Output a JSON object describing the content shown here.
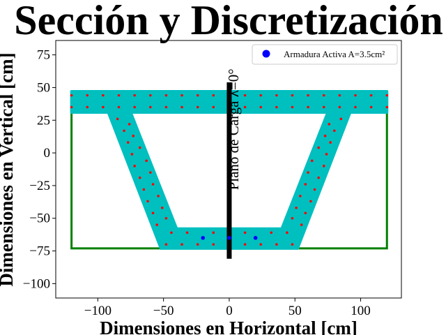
{
  "chart_data": {
    "type": "scatter",
    "title": "Sección y Discretización",
    "xlabel": "Dimensiones en Horizontal [cm]",
    "ylabel": "Dimensiones en Vertical [cm]",
    "xlim": [
      -132,
      131
    ],
    "ylim": [
      -111,
      86
    ],
    "xticks": [
      -100,
      -50,
      0,
      50,
      100
    ],
    "yticks": [
      -100,
      -75,
      -50,
      -25,
      0,
      25,
      50,
      75
    ],
    "xtick_labels": [
      "−100",
      "−50",
      "0",
      "50",
      "100"
    ],
    "ytick_labels": [
      "−100",
      "−75",
      "−50",
      "−25",
      "0",
      "25",
      "50",
      "75"
    ],
    "grid": false,
    "legend": {
      "position": "top-right",
      "entries": [
        "Armadura Activa A=3.5cm²"
      ]
    },
    "colors": {
      "section": "#00bfbf",
      "outline": "#008000",
      "rebar": "#ff0000",
      "prestress": "#0000ff",
      "load_plane": "#000000"
    },
    "annotation": {
      "text": "Plano de Carga λ=0°",
      "x": 7,
      "y": 18,
      "rotation": -90
    },
    "section_outline": [
      [
        -120,
        31
      ],
      [
        -120,
        -73
      ],
      [
        120,
        -73
      ],
      [
        120,
        31
      ]
    ],
    "section_regions": [
      [
        [
          -120,
          47
        ],
        [
          120,
          47
        ],
        [
          120,
          31
        ],
        [
          -120,
          31
        ]
      ],
      [
        [
          -92,
          31
        ],
        [
          -75,
          31
        ],
        [
          -40,
          -58
        ],
        [
          -52,
          -73
        ]
      ],
      [
        [
          75,
          31
        ],
        [
          92,
          31
        ],
        [
          52,
          -73
        ],
        [
          40,
          -58
        ]
      ],
      [
        [
          -52,
          -58
        ],
        [
          52,
          -58
        ],
        [
          52,
          -73
        ],
        [
          -52,
          -73
        ]
      ]
    ],
    "load_plane": {
      "x": 0,
      "y": [
        -81,
        54
      ]
    },
    "series": [
      {
        "name": "Armadura Activa A=3.5cm²",
        "marker": "circle",
        "points": [
          [
            -20,
            -65
          ],
          [
            0,
            -65
          ],
          [
            20,
            -65
          ]
        ]
      },
      {
        "marker": "dot",
        "points": [
          [
            -120,
            44
          ],
          [
            -108,
            44
          ],
          [
            -96,
            44
          ],
          [
            -84,
            44
          ],
          [
            -72,
            44
          ],
          [
            -60,
            44
          ],
          [
            -48,
            44
          ],
          [
            -36,
            44
          ],
          [
            -24,
            44
          ],
          [
            -12,
            44
          ],
          [
            12,
            44
          ],
          [
            24,
            44
          ],
          [
            36,
            44
          ],
          [
            48,
            44
          ],
          [
            60,
            44
          ],
          [
            72,
            44
          ],
          [
            84,
            44
          ],
          [
            96,
            44
          ],
          [
            108,
            44
          ],
          [
            120,
            44
          ],
          [
            -120,
            35
          ],
          [
            -108,
            35
          ],
          [
            -96,
            35
          ],
          [
            -84,
            35
          ],
          [
            -72,
            35
          ],
          [
            -60,
            35
          ],
          [
            -48,
            35
          ],
          [
            -36,
            35
          ],
          [
            -24,
            35
          ],
          [
            -12,
            35
          ],
          [
            12,
            35
          ],
          [
            24,
            35
          ],
          [
            36,
            35
          ],
          [
            48,
            35
          ],
          [
            60,
            35
          ],
          [
            72,
            35
          ],
          [
            84,
            35
          ],
          [
            96,
            35
          ],
          [
            108,
            35
          ],
          [
            120,
            35
          ],
          [
            -85,
            26
          ],
          [
            -80,
            17
          ],
          [
            -77,
            8
          ],
          [
            -74,
            -1
          ],
          [
            -72,
            -10
          ],
          [
            -68,
            -19
          ],
          [
            -65,
            -28
          ],
          [
            -62,
            -37
          ],
          [
            -58,
            -46
          ],
          [
            -55,
            -55
          ],
          [
            -76,
            22
          ],
          [
            -73,
            13
          ],
          [
            -68,
            4
          ],
          [
            -63,
            -6
          ],
          [
            -60,
            -15
          ],
          [
            -58,
            -24
          ],
          [
            -54,
            -33
          ],
          [
            -51,
            -42
          ],
          [
            -48,
            -50
          ],
          [
            85,
            26
          ],
          [
            80,
            17
          ],
          [
            77,
            8
          ],
          [
            74,
            -1
          ],
          [
            72,
            -10
          ],
          [
            68,
            -19
          ],
          [
            65,
            -28
          ],
          [
            62,
            -37
          ],
          [
            58,
            -46
          ],
          [
            55,
            -55
          ],
          [
            76,
            22
          ],
          [
            73,
            13
          ],
          [
            68,
            4
          ],
          [
            63,
            -6
          ],
          [
            60,
            -15
          ],
          [
            58,
            -24
          ],
          [
            54,
            -33
          ],
          [
            51,
            -42
          ],
          [
            48,
            -50
          ],
          [
            -48,
            -70
          ],
          [
            -36,
            -70
          ],
          [
            -24,
            -70
          ],
          [
            -12,
            -70
          ],
          [
            12,
            -70
          ],
          [
            24,
            -70
          ],
          [
            36,
            -70
          ],
          [
            48,
            -70
          ],
          [
            -44,
            -61
          ],
          [
            -32,
            -61
          ],
          [
            -12,
            -61
          ],
          [
            12,
            -61
          ],
          [
            32,
            -61
          ],
          [
            44,
            -61
          ]
        ]
      }
    ]
  }
}
